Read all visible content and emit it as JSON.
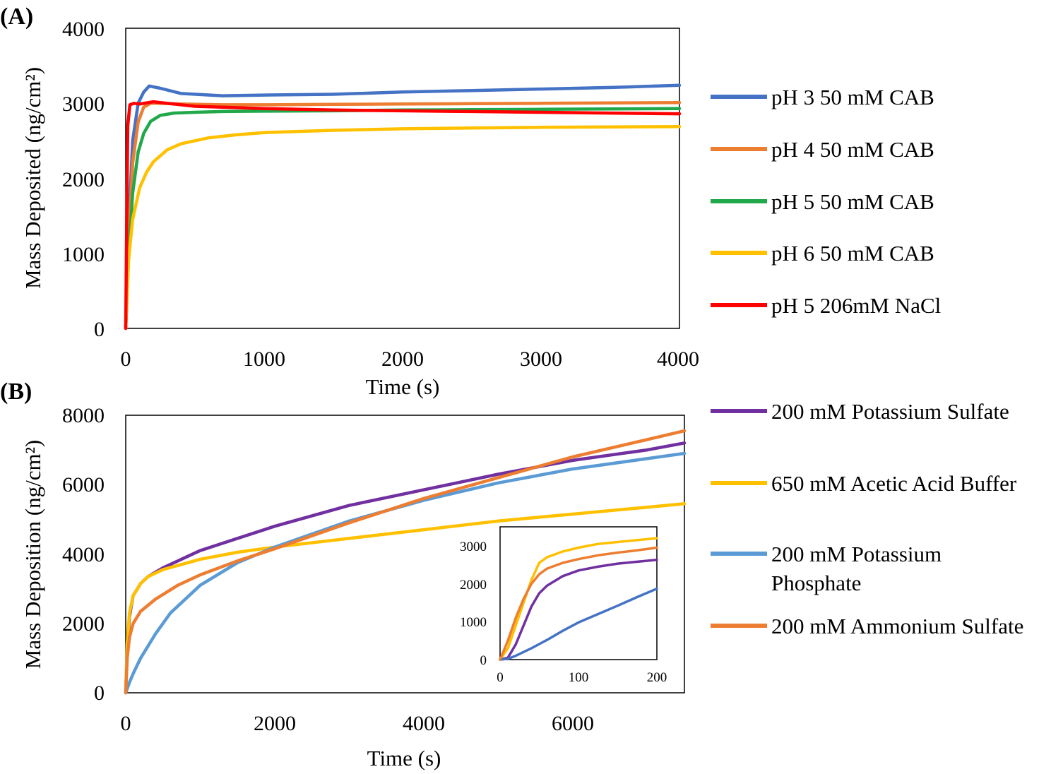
{
  "chart_data": [
    {
      "panel_label": "(A)",
      "type": "line",
      "xlabel": "Time (s)",
      "ylabel": "Mass Deposited (ng/cm²)",
      "xlim": [
        0,
        4000
      ],
      "ylim": [
        0,
        4000
      ],
      "xticks": [
        "0",
        "1000",
        "2000",
        "3000",
        "4000"
      ],
      "yticks": [
        "0",
        "1000",
        "2000",
        "3000",
        "4000"
      ],
      "grid": false,
      "legend_position": "right",
      "series": [
        {
          "name": "pH 3 50 mM CAB",
          "color": "#4472C4",
          "x": [
            0,
            20,
            50,
            90,
            130,
            170,
            250,
            400,
            700,
            1000,
            1500,
            2000,
            2500,
            3000,
            3500,
            4000
          ],
          "y": [
            0,
            1300,
            2500,
            3000,
            3150,
            3230,
            3200,
            3130,
            3100,
            3110,
            3120,
            3150,
            3170,
            3190,
            3210,
            3240
          ]
        },
        {
          "name": "pH 4 50 mM CAB",
          "color": "#ED7D31",
          "x": [
            0,
            20,
            50,
            90,
            130,
            180,
            250,
            400,
            700,
            1000,
            1500,
            2000,
            2500,
            3000,
            3500,
            4000
          ],
          "y": [
            0,
            1100,
            2200,
            2750,
            2950,
            3000,
            3000,
            2990,
            2980,
            2980,
            2985,
            2990,
            2995,
            3000,
            3005,
            3010
          ]
        },
        {
          "name": "pH 5 50 mM CAB",
          "color": "#20A84A",
          "x": [
            0,
            20,
            50,
            90,
            130,
            180,
            250,
            350,
            500,
            700,
            1000,
            1500,
            2000,
            2500,
            3000,
            3500,
            4000
          ],
          "y": [
            0,
            900,
            1800,
            2350,
            2600,
            2760,
            2840,
            2870,
            2880,
            2890,
            2895,
            2900,
            2910,
            2915,
            2920,
            2925,
            2930
          ]
        },
        {
          "name": "pH 6 50 mM CAB",
          "color": "#FFC000",
          "x": [
            0,
            20,
            50,
            100,
            150,
            200,
            300,
            400,
            600,
            800,
            1000,
            1500,
            2000,
            2500,
            3000,
            3500,
            4000
          ],
          "y": [
            0,
            900,
            1450,
            1870,
            2080,
            2220,
            2380,
            2460,
            2540,
            2580,
            2610,
            2640,
            2660,
            2670,
            2680,
            2685,
            2690
          ]
        },
        {
          "name": "pH 5 206mM NaCl",
          "color": "#FF0000",
          "x": [
            0,
            8,
            15,
            30,
            60,
            100,
            200,
            300,
            500,
            1000,
            1500,
            2000,
            2500,
            3000,
            3500,
            4000
          ],
          "y": [
            0,
            1600,
            2700,
            2980,
            3000,
            2990,
            3020,
            3000,
            2960,
            2930,
            2910,
            2900,
            2890,
            2880,
            2870,
            2860
          ]
        }
      ]
    },
    {
      "panel_label": "(B)",
      "type": "line",
      "xlabel": "Time (s)",
      "ylabel": "Mass Deposition (ng/cm²)",
      "xlim": [
        0,
        7500
      ],
      "ylim": [
        0,
        8000
      ],
      "xticks": [
        "0",
        "2000",
        "4000",
        "6000"
      ],
      "yticks": [
        "0",
        "2000",
        "4000",
        "6000",
        "8000"
      ],
      "grid": false,
      "legend_position": "right",
      "series": [
        {
          "name": "200 mM Potassium Sulfate",
          "color": "#7030A0",
          "x": [
            0,
            20,
            50,
            100,
            200,
            300,
            500,
            1000,
            1500,
            2000,
            3000,
            4000,
            5000,
            6000,
            7000,
            7500
          ],
          "y": [
            0,
            1200,
            2200,
            2800,
            3150,
            3350,
            3600,
            4100,
            4450,
            4800,
            5400,
            5850,
            6300,
            6700,
            7000,
            7200
          ]
        },
        {
          "name": "650 mM Acetic Acid Buffer",
          "color": "#FFC000",
          "x": [
            0,
            20,
            50,
            100,
            200,
            300,
            500,
            1000,
            1500,
            2000,
            3000,
            4000,
            5000,
            6000,
            7000,
            7500
          ],
          "y": [
            0,
            1400,
            2300,
            2800,
            3150,
            3350,
            3550,
            3850,
            4050,
            4200,
            4450,
            4700,
            4950,
            5150,
            5350,
            5450
          ]
        },
        {
          "name": "200 mM Potassium Phosphate",
          "color": "#5B9BD5",
          "x": [
            0,
            50,
            100,
            200,
            400,
            600,
            1000,
            1500,
            2000,
            3000,
            4000,
            5000,
            6000,
            7000,
            7500
          ],
          "y": [
            0,
            300,
            550,
            1000,
            1700,
            2300,
            3100,
            3750,
            4200,
            4950,
            5550,
            6050,
            6450,
            6750,
            6900
          ]
        },
        {
          "name": "200 mM Ammonium Sulfate",
          "color": "#ED7D31",
          "x": [
            0,
            20,
            50,
            100,
            200,
            400,
            700,
            1000,
            1500,
            2000,
            3000,
            4000,
            5000,
            6000,
            7000,
            7500
          ],
          "y": [
            0,
            1000,
            1600,
            2000,
            2350,
            2700,
            3100,
            3400,
            3800,
            4150,
            4900,
            5600,
            6200,
            6800,
            7300,
            7550
          ]
        }
      ],
      "inset": {
        "type": "line",
        "xlim": [
          0,
          200
        ],
        "ylim": [
          0,
          3500
        ],
        "xticks": [
          "0",
          "100",
          "200"
        ],
        "yticks": [
          "0",
          "1000",
          "2000",
          "3000"
        ],
        "series": [
          {
            "name": "200 mM Potassium Sulfate",
            "color": "#7030A0",
            "x": [
              0,
              10,
              20,
              30,
              40,
              50,
              60,
              80,
              100,
              125,
              150,
              175,
              200
            ],
            "y": [
              0,
              50,
              400,
              900,
              1400,
              1750,
              1950,
              2200,
              2350,
              2450,
              2530,
              2580,
              2630
            ]
          },
          {
            "name": "650 mM Acetic Acid Buffer",
            "color": "#FFC000",
            "x": [
              0,
              10,
              20,
              30,
              40,
              50,
              60,
              80,
              100,
              125,
              150,
              175,
              200
            ],
            "y": [
              0,
              300,
              900,
              1500,
              2100,
              2550,
              2700,
              2850,
              2950,
              3050,
              3100,
              3150,
              3200
            ]
          },
          {
            "name": "200 mM Potassium Phosphate",
            "color": "#4472C4",
            "x": [
              0,
              10,
              20,
              40,
              60,
              80,
              100,
              125,
              150,
              175,
              200
            ],
            "y": [
              0,
              20,
              100,
              300,
              520,
              760,
              980,
              1200,
              1420,
              1650,
              1870
            ]
          },
          {
            "name": "200 mM Ammonium Sulfate",
            "color": "#ED7D31",
            "x": [
              0,
              10,
              20,
              30,
              40,
              50,
              60,
              80,
              100,
              125,
              150,
              175,
              200
            ],
            "y": [
              0,
              500,
              1100,
              1600,
              2000,
              2250,
              2400,
              2550,
              2650,
              2750,
              2820,
              2880,
              2950
            ]
          }
        ]
      }
    }
  ]
}
